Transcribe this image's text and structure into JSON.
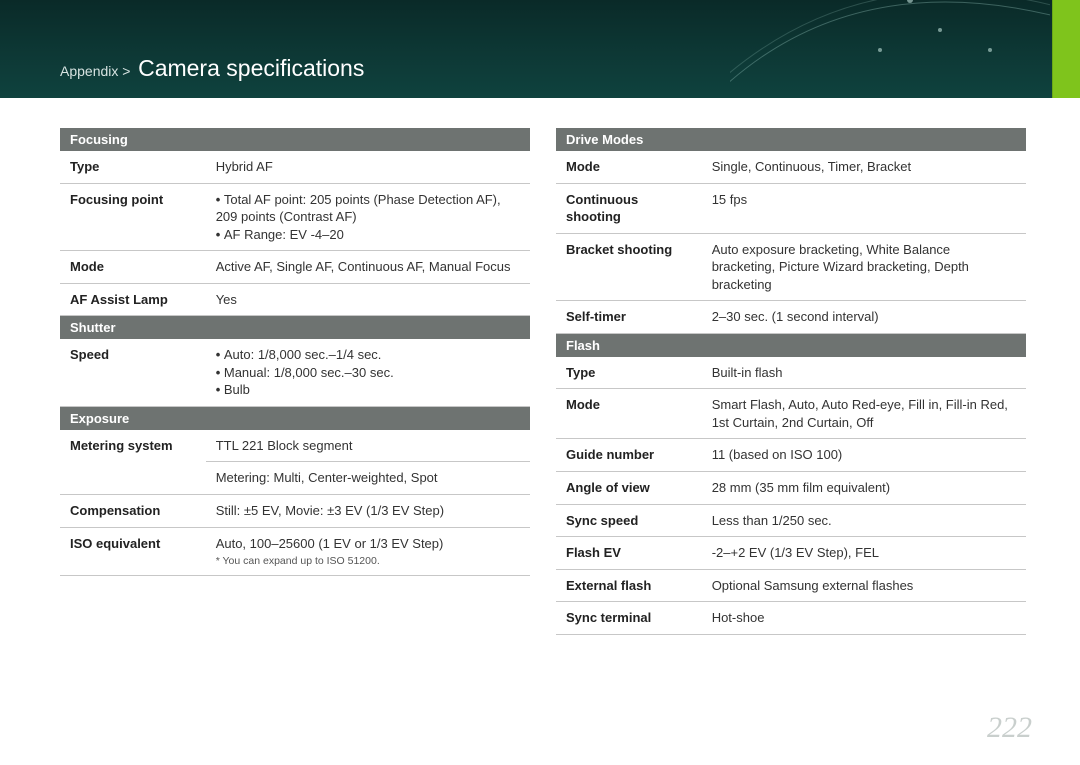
{
  "header": {
    "breadcrumb": "Appendix >",
    "title": "Camera specifications"
  },
  "page_number": "222",
  "colors": {
    "section_header_bg": "#6e7371",
    "accent_tab": "#7fc41c",
    "band_gradient_top": "#0a2a28",
    "band_gradient_bottom": "#0f423e",
    "row_border": "#c7c7c7",
    "page_num": "#c9cfcd"
  },
  "left": {
    "sections": [
      {
        "header": "Focusing",
        "rows": [
          {
            "label": "Type",
            "value": "Hybrid AF"
          },
          {
            "label": "Focusing point",
            "bullets": [
              "Total AF point: 205 points (Phase Detection AF), 209 points (Contrast AF)",
              "AF Range: EV -4–20"
            ]
          },
          {
            "label": "Mode",
            "value": "Active AF, Single AF, Continuous AF, Manual Focus"
          },
          {
            "label": "AF Assist Lamp",
            "value": "Yes"
          }
        ]
      },
      {
        "header": "Shutter",
        "rows": [
          {
            "label": "Speed",
            "bullets": [
              "Auto: 1/8,000 sec.–1/4 sec.",
              "Manual: 1/8,000 sec.–30 sec.",
              "Bulb"
            ]
          }
        ]
      },
      {
        "header": "Exposure",
        "rows": [
          {
            "label": "Metering system",
            "value": "TTL 221 Block segment",
            "value2": "Metering: Multi, Center-weighted, Spot"
          },
          {
            "label": "Compensation",
            "value": "Still: ±5 EV, Movie: ±3 EV (1/3 EV Step)"
          },
          {
            "label": "ISO equivalent",
            "value": "Auto, 100–25600 (1 EV or 1/3 EV Step)",
            "footnote": "* You can expand up to ISO 51200."
          }
        ]
      }
    ]
  },
  "right": {
    "sections": [
      {
        "header": "Drive Modes",
        "rows": [
          {
            "label": "Mode",
            "value": "Single, Continuous, Timer, Bracket"
          },
          {
            "label": "Continuous shooting",
            "value": "15 fps"
          },
          {
            "label": "Bracket shooting",
            "value": "Auto exposure bracketing, White Balance bracketing, Picture Wizard bracketing, Depth bracketing"
          },
          {
            "label": "Self-timer",
            "value": "2–30 sec. (1 second interval)"
          }
        ]
      },
      {
        "header": "Flash",
        "rows": [
          {
            "label": "Type",
            "value": "Built-in flash"
          },
          {
            "label": "Mode",
            "value": "Smart Flash, Auto, Auto Red-eye, Fill in, Fill-in Red, 1st Curtain, 2nd Curtain, Off"
          },
          {
            "label": "Guide number",
            "value": "11 (based on ISO 100)"
          },
          {
            "label": "Angle of view",
            "value": "28 mm (35 mm film equivalent)"
          },
          {
            "label": "Sync speed",
            "value": "Less than 1/250 sec."
          },
          {
            "label": "Flash EV",
            "value": "-2–+2 EV (1/3 EV Step), FEL"
          },
          {
            "label": "External flash",
            "value": "Optional Samsung external flashes"
          },
          {
            "label": "Sync terminal",
            "value": "Hot-shoe"
          }
        ]
      }
    ]
  }
}
